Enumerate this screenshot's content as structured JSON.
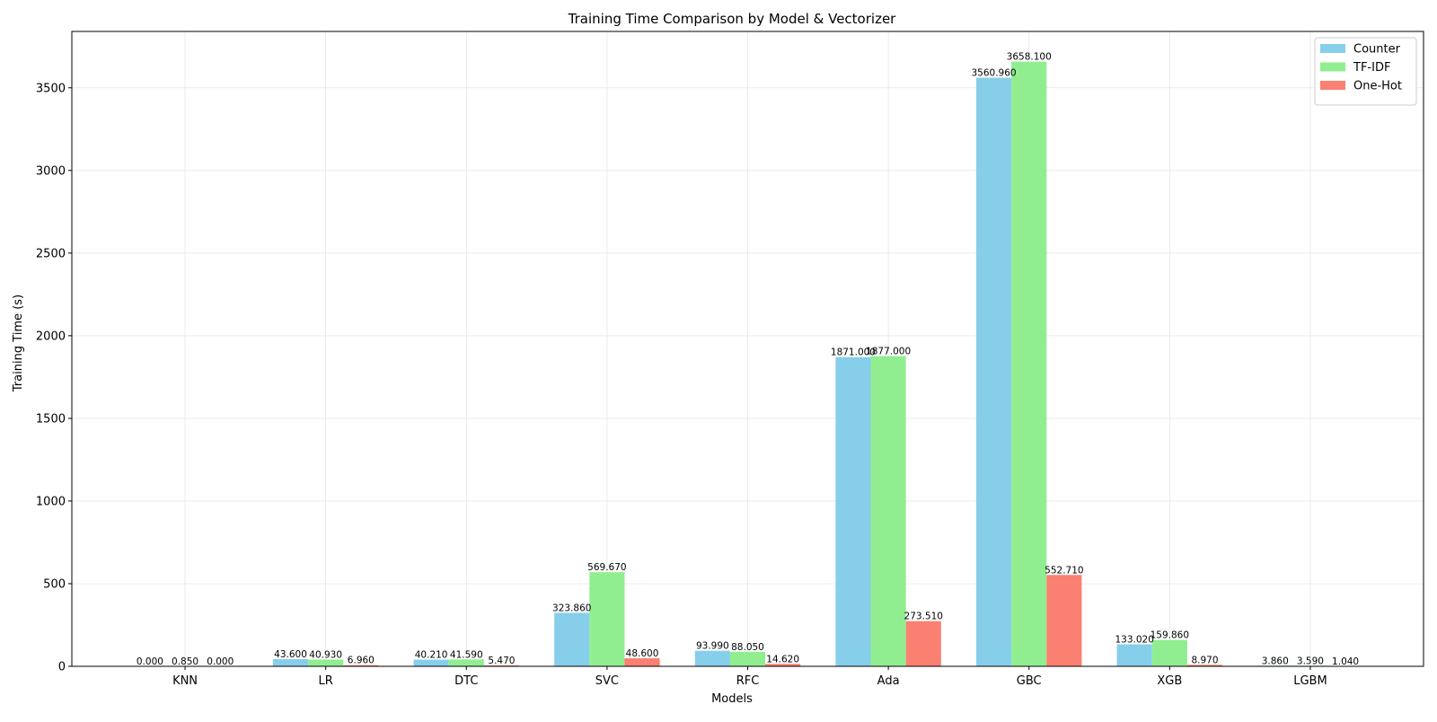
{
  "chart_data": {
    "type": "bar",
    "title": "Training Time Comparison by Model & Vectorizer",
    "xlabel": "Models",
    "ylabel": "Training Time (s)",
    "categories": [
      "KNN",
      "LR",
      "DTC",
      "SVC",
      "RFC",
      "Ada",
      "GBC",
      "XGB",
      "LGBM"
    ],
    "series": [
      {
        "name": "Counter",
        "color": "#87CEEB",
        "values": [
          0.0,
          43.6,
          40.21,
          323.86,
          93.99,
          1871.0,
          3560.96,
          133.02,
          3.86
        ],
        "labels": [
          "0.000",
          "43.600",
          "40.210",
          "323.860",
          "93.990",
          "1871.000",
          "3560.960",
          "133.020",
          "3.860"
        ]
      },
      {
        "name": "TF-IDF",
        "color": "#90EE90",
        "values": [
          0.85,
          40.93,
          41.59,
          569.67,
          88.05,
          1877.0,
          3658.1,
          159.86,
          3.59
        ],
        "labels": [
          "0.850",
          "40.930",
          "41.590",
          "569.670",
          "88.050",
          "1877.000",
          "3658.100",
          "159.860",
          "3.590"
        ]
      },
      {
        "name": "One-Hot",
        "color": "#FA8072",
        "values": [
          0.0,
          6.96,
          5.47,
          48.6,
          14.62,
          273.51,
          552.71,
          8.97,
          1.04
        ],
        "labels": [
          "0.000",
          "6.960",
          "5.470",
          "48.600",
          "14.620",
          "273.510",
          "552.710",
          "8.970",
          "1.040"
        ]
      }
    ],
    "yticks": [
      0,
      500,
      1000,
      1500,
      2000,
      2500,
      3000,
      3500
    ],
    "ylim": [
      0,
      3841
    ],
    "xlim": [
      -0.805,
      8.805
    ],
    "grid": true,
    "legend": "top-right"
  }
}
